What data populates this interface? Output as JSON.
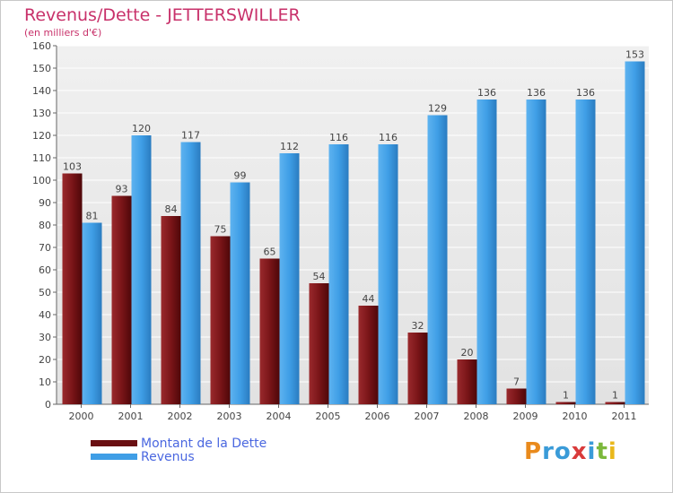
{
  "chart_data": {
    "type": "bar",
    "title": "Revenus/Dette - JETTERSWILLER",
    "subtitle": "(en milliers d'€)",
    "categories": [
      "2000",
      "2001",
      "2002",
      "2003",
      "2004",
      "2005",
      "2006",
      "2007",
      "2008",
      "2009",
      "2010",
      "2011"
    ],
    "series": [
      {
        "name": "Montant de la Dette",
        "color": "#7a1518",
        "values": [
          103,
          93,
          84,
          75,
          65,
          54,
          44,
          32,
          20,
          7,
          1,
          1
        ]
      },
      {
        "name": "Revenus",
        "color": "#3f9ee6",
        "values": [
          81,
          120,
          117,
          99,
          112,
          116,
          116,
          129,
          136,
          136,
          136,
          153
        ]
      }
    ],
    "ylim": [
      0,
      160
    ],
    "ytick_step": 10,
    "grid": true,
    "legend_position": "bottom-left"
  },
  "logo": {
    "letters": [
      {
        "ch": "P",
        "color": "#e98a1c"
      },
      {
        "ch": "r",
        "color": "#3a9bd8"
      },
      {
        "ch": "o",
        "color": "#3a9bd8"
      },
      {
        "ch": "x",
        "color": "#d93b3b"
      },
      {
        "ch": "i",
        "color": "#3a9bd8"
      },
      {
        "ch": "t",
        "color": "#7cb83c"
      },
      {
        "ch": "i",
        "color": "#e9b81c"
      }
    ]
  }
}
